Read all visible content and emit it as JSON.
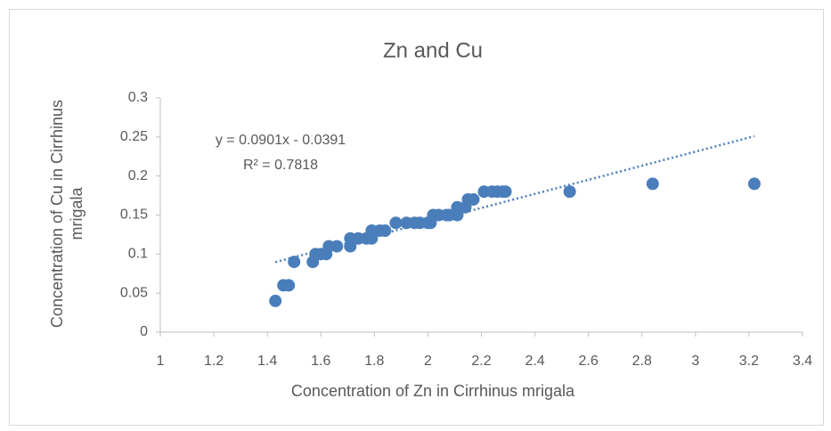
{
  "chart_data": {
    "type": "scatter",
    "title": "Zn and Cu",
    "x_label": "Concentration of Zn in Cirrhinus mrigala",
    "y_label": "Concentration of Cu in Cirrhinus mrigala",
    "color": "#4a7ebb",
    "x": [
      1.43,
      1.46,
      1.48,
      1.5,
      1.57,
      1.58,
      1.6,
      1.62,
      1.63,
      1.66,
      1.71,
      1.71,
      1.74,
      1.77,
      1.79,
      1.79,
      1.82,
      1.84,
      1.88,
      1.92,
      1.95,
      1.97,
      2.0,
      2.01,
      2.02,
      2.04,
      2.07,
      2.08,
      2.11,
      2.11,
      2.14,
      2.15,
      2.17,
      2.21,
      2.24,
      2.26,
      2.28,
      2.29,
      2.53,
      2.84,
      3.22
    ],
    "values": [
      0.04,
      0.06,
      0.06,
      0.09,
      0.09,
      0.1,
      0.1,
      0.1,
      0.11,
      0.11,
      0.11,
      0.12,
      0.12,
      0.12,
      0.12,
      0.13,
      0.13,
      0.13,
      0.14,
      0.14,
      0.14,
      0.14,
      0.14,
      0.14,
      0.15,
      0.15,
      0.15,
      0.15,
      0.15,
      0.16,
      0.16,
      0.17,
      0.17,
      0.18,
      0.18,
      0.18,
      0.18,
      0.18,
      0.18,
      0.19,
      0.19
    ],
    "trendline": {
      "slope": 0.0901,
      "intercept": -0.0391,
      "equation": "y = 0.0901x - 0.0391",
      "r_squared": "R² = 0.7818"
    },
    "xlim": [
      1,
      3.4
    ],
    "xticks": [
      1,
      1.2,
      1.4,
      1.6,
      1.8,
      2,
      2.2,
      2.4,
      2.6,
      2.8,
      3,
      3.2,
      3.4
    ],
    "ylim": [
      0,
      0.3
    ],
    "yticks": [
      0,
      0.05,
      0.1,
      0.15,
      0.2,
      0.25,
      0.3
    ],
    "grid": false
  }
}
